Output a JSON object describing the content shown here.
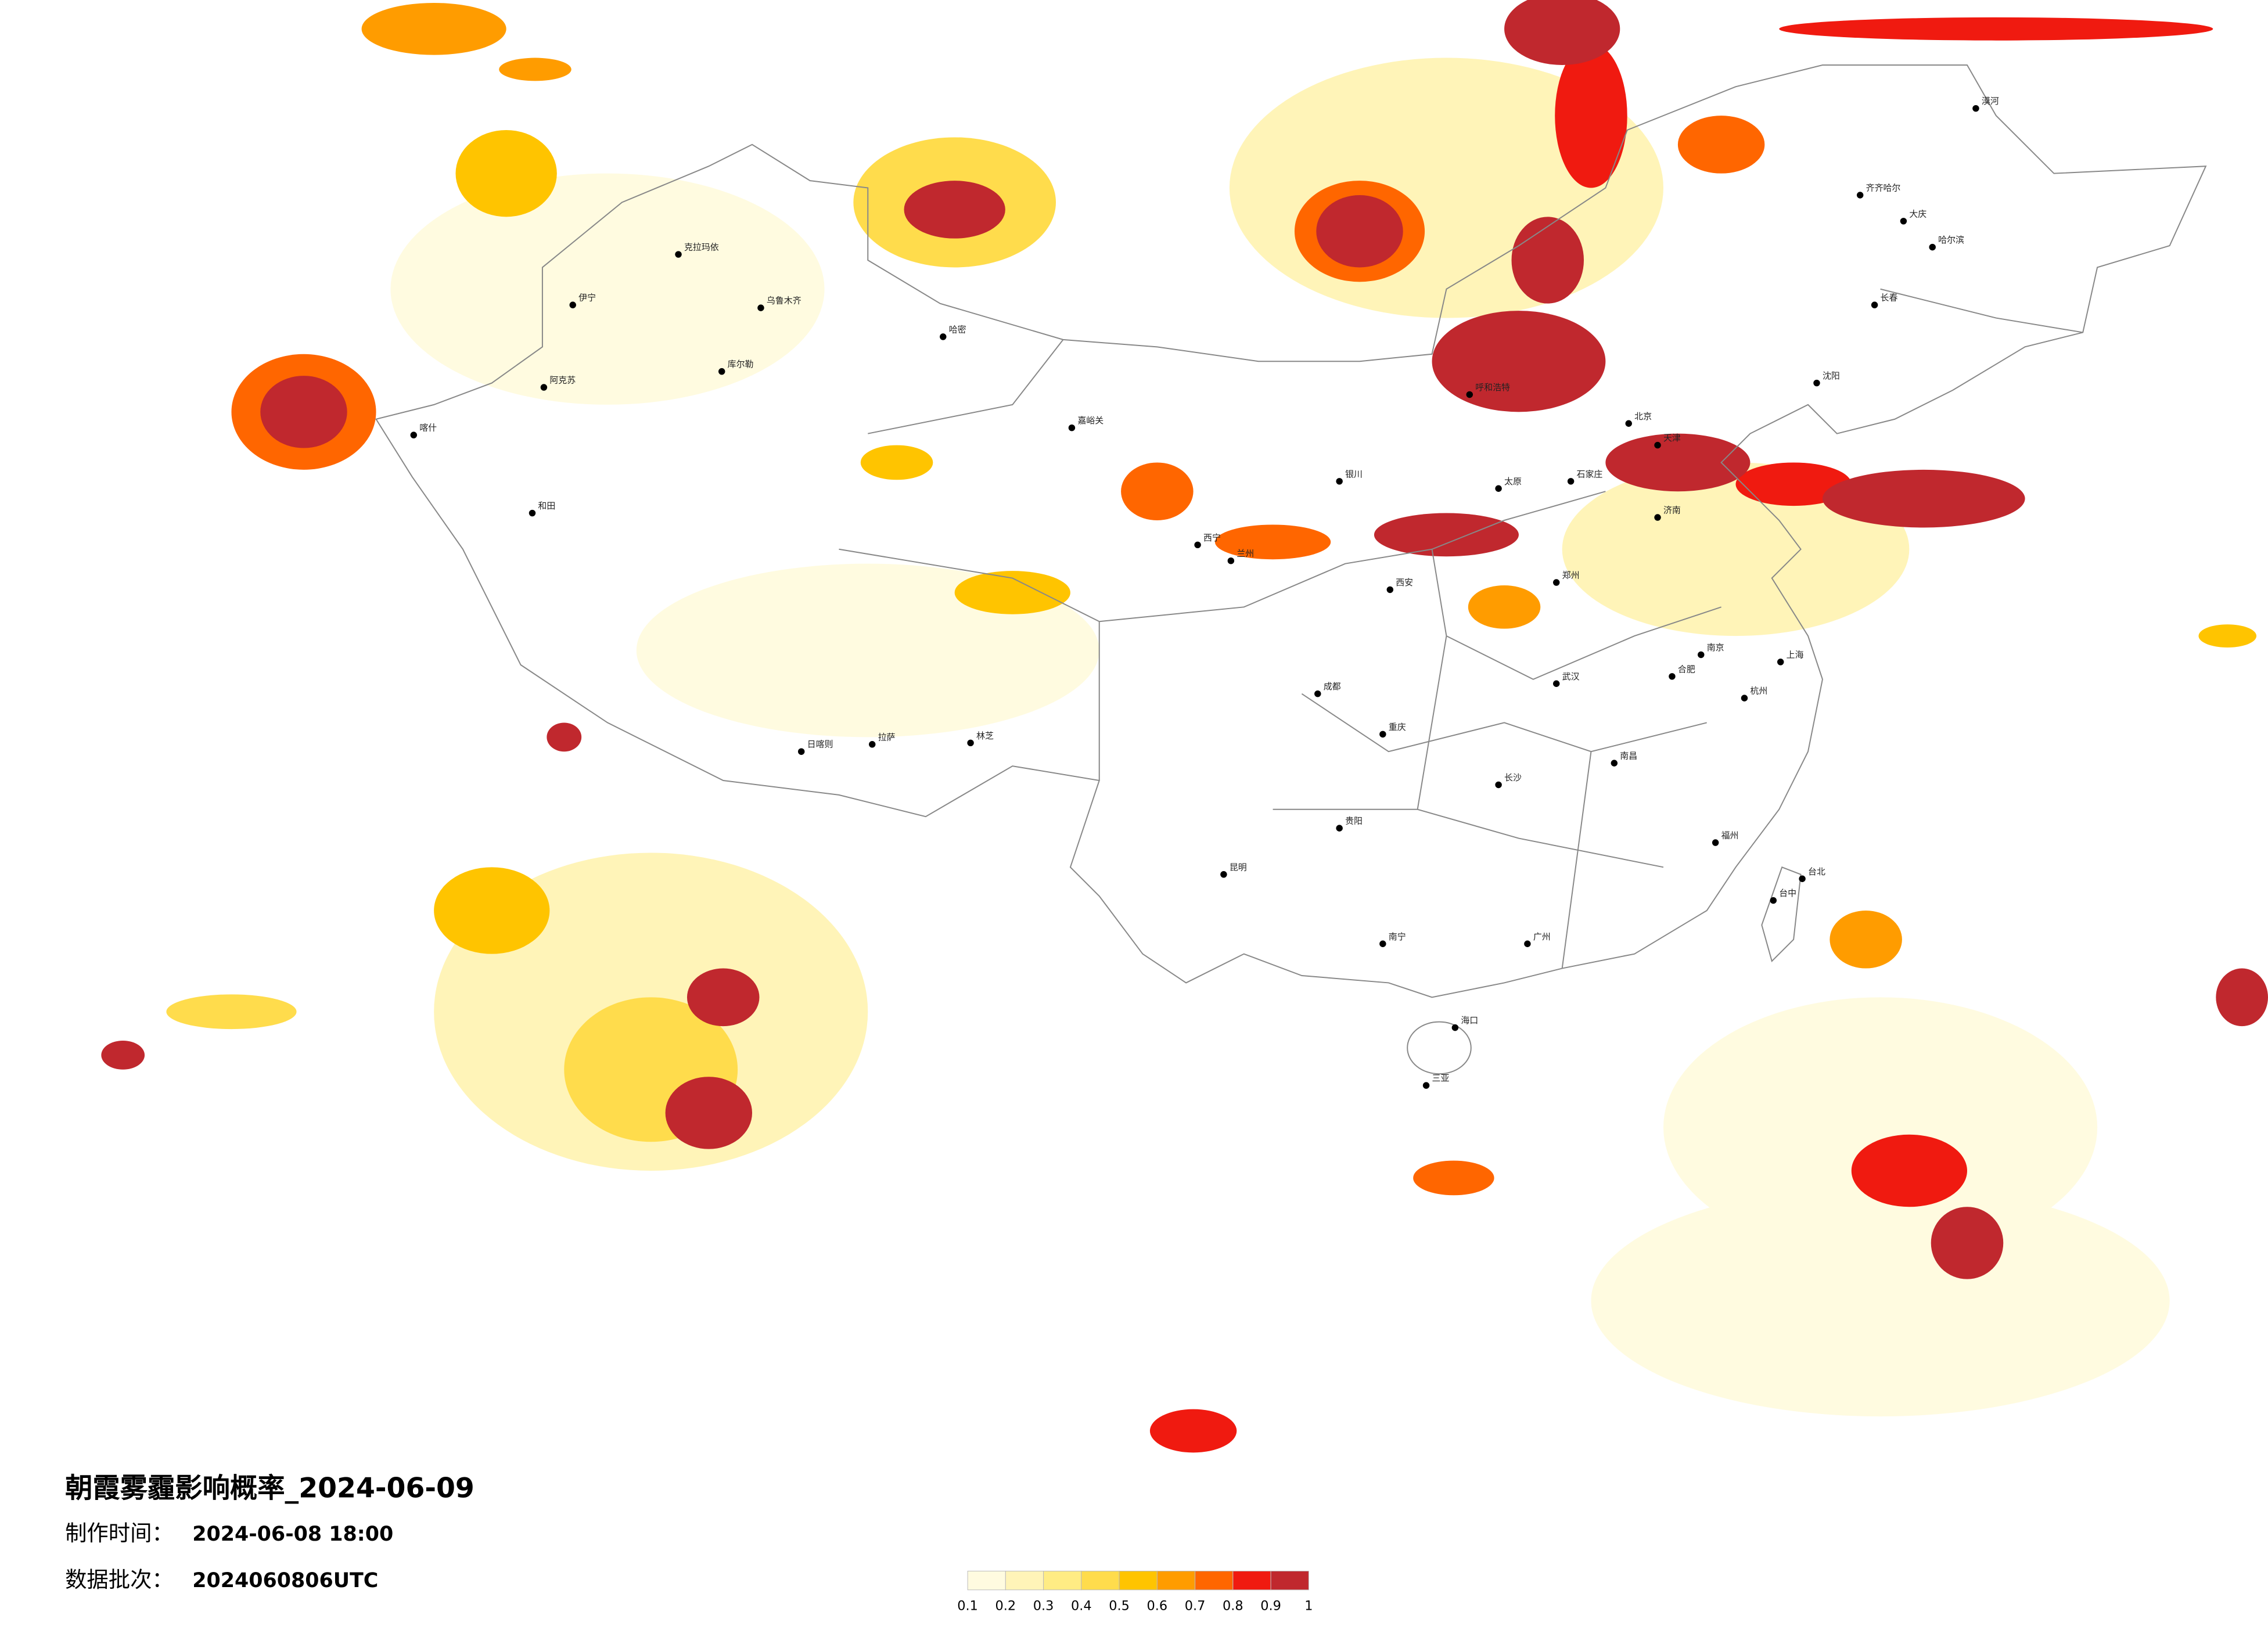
{
  "header": {
    "title": "朝霞雾霾影响概率_2024-06-09",
    "made_label": "制作时间：",
    "made_value": "2024-06-08 18:00",
    "batch_label": "数据批次：",
    "batch_value": "2024060806UTC"
  },
  "legend": {
    "ticks": [
      0.1,
      0.2,
      0.3,
      0.4,
      0.5,
      0.6,
      0.7,
      0.8,
      0.9,
      1
    ],
    "colors": [
      "#fffbe0",
      "#fff4b8",
      "#ffec84",
      "#ffdc4c",
      "#ffc400",
      "#ff9c00",
      "#ff6600",
      "#f01a10",
      "#c0282e"
    ]
  },
  "cities": [
    "克拉玛依",
    "乌鲁木齐",
    "伊宁",
    "喀什",
    "和田",
    "阿克苏",
    "哈密",
    "库尔勒",
    "嘉峪关",
    "西宁",
    "兰州",
    "拉萨",
    "日喀则",
    "林芝",
    "呼和浩特",
    "北京",
    "天津",
    "石家庄",
    "太原",
    "济南",
    "郑州",
    "西安",
    "银川",
    "成都",
    "重庆",
    "贵阳",
    "昆明",
    "南宁",
    "广州",
    "长沙",
    "武汉",
    "南昌",
    "杭州",
    "上海",
    "南京",
    "福州",
    "合肥",
    "沈阳",
    "长春",
    "哈尔滨",
    "海口",
    "三亚",
    "台北",
    "台中",
    "齐齐哈尔",
    "漠河",
    "大庆"
  ]
}
